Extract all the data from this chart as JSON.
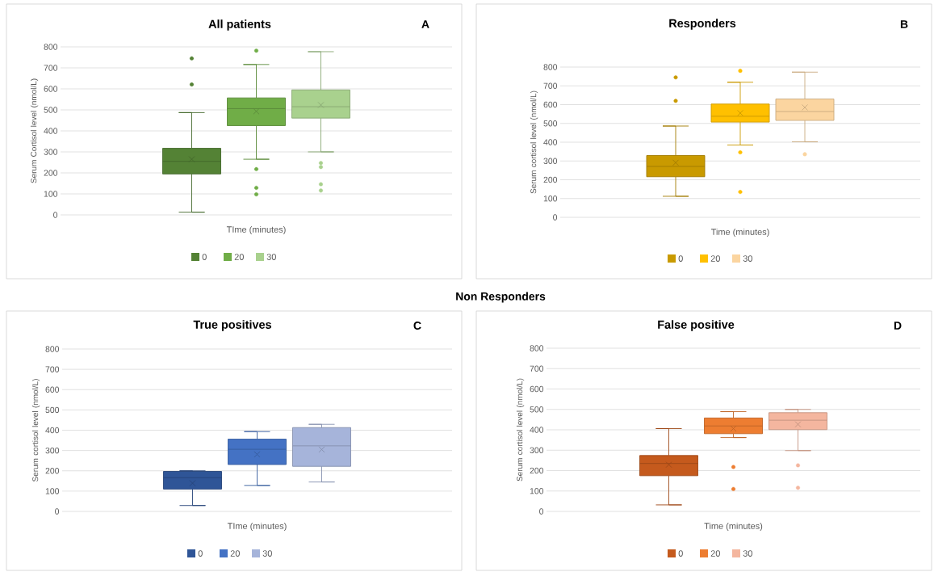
{
  "chart_data": [
    {
      "type": "box",
      "title": "All patients",
      "annotations": [
        "A"
      ],
      "xlabel": "TIme (minutes)",
      "ylabel": "Serum Cortisol level (nmol/L)",
      "categories": [
        null
      ],
      "ylim": [
        0,
        800
      ],
      "yticks": [
        0,
        100,
        200,
        300,
        400,
        500,
        600,
        700,
        800
      ],
      "grid": "y",
      "legend": "bottom",
      "series": [
        {
          "name": "0",
          "color": "#548235",
          "boxes": [
            {
              "low": 13,
              "q1": 195,
              "median": 255,
              "q3": 317,
              "high": 487,
              "mean": 265,
              "outliers": [
                745,
                621
              ]
            }
          ]
        },
        {
          "name": "20",
          "color": "#70ad47",
          "boxes": [
            {
              "low": 265,
              "q1": 425,
              "median": 506,
              "q3": 557,
              "high": 716,
              "mean": 493,
              "outliers": [
                782,
                218,
                129,
                98
              ]
            }
          ]
        },
        {
          "name": "30",
          "color": "#a9d18e",
          "boxes": [
            {
              "low": 300,
              "q1": 461,
              "median": 515,
              "q3": 595,
              "high": 777,
              "mean": 523,
              "outliers": [
                247,
                228,
                146,
                116
              ]
            }
          ]
        }
      ]
    },
    {
      "type": "box",
      "title": "Responders",
      "annotations": [
        "B"
      ],
      "xlabel": "Time (minutes)",
      "ylabel": "Serum cortisol level (nmol/L)",
      "categories": [
        null
      ],
      "ylim": [
        0,
        800
      ],
      "yticks": [
        0,
        100,
        200,
        300,
        400,
        500,
        600,
        700,
        800
      ],
      "grid": "y",
      "legend": "bottom",
      "series": [
        {
          "name": "0",
          "color": "#c99a00",
          "boxes": [
            {
              "low": 112,
              "q1": 216,
              "median": 271,
              "q3": 329,
              "high": 486,
              "mean": 291,
              "outliers": [
                745,
                620
              ]
            }
          ]
        },
        {
          "name": "20",
          "color": "#ffc000",
          "boxes": [
            {
              "low": 385,
              "q1": 507,
              "median": 538,
              "q3": 603,
              "high": 719,
              "mean": 555,
              "outliers": [
                780,
                346,
                135
              ]
            }
          ]
        },
        {
          "name": "30",
          "color": "#fbd5a0",
          "boxes": [
            {
              "low": 402,
              "q1": 516,
              "median": 563,
              "q3": 630,
              "high": 773,
              "mean": 585,
              "outliers": [
                336
              ]
            }
          ]
        }
      ]
    },
    {
      "type": "box",
      "title": "True positives",
      "annotations": [
        "C",
        "Non Responders"
      ],
      "xlabel": "TIme (minutes)",
      "ylabel": "Serum cortisol level (nmol/L)",
      "categories": [
        null
      ],
      "ylim": [
        0,
        800
      ],
      "yticks": [
        0,
        100,
        200,
        300,
        400,
        500,
        600,
        700,
        800
      ],
      "grid": "y",
      "legend": "bottom",
      "series": [
        {
          "name": "0",
          "color": "#2f5597",
          "boxes": [
            {
              "low": 29,
              "q1": 110,
              "median": 166,
              "q3": 197,
              "high": 200,
              "mean": 139
            }
          ]
        },
        {
          "name": "20",
          "color": "#4472c4",
          "boxes": [
            {
              "low": 128,
              "q1": 231,
              "median": 306,
              "q3": 356,
              "high": 393,
              "mean": 281
            }
          ]
        },
        {
          "name": "30",
          "color": "#a6b4da",
          "boxes": [
            {
              "low": 145,
              "q1": 222,
              "median": 323,
              "q3": 413,
              "high": 429,
              "mean": 305
            }
          ]
        }
      ]
    },
    {
      "type": "box",
      "title": "False positive",
      "annotations": [
        "D"
      ],
      "xlabel": "Time (minutes)",
      "ylabel": "Serum cortisol level (nmol/L)",
      "categories": [
        null
      ],
      "ylim": [
        0,
        800
      ],
      "yticks": [
        0,
        100,
        200,
        300,
        400,
        500,
        600,
        700,
        800
      ],
      "grid": "y",
      "legend": "bottom",
      "series": [
        {
          "name": "0",
          "color": "#c55a1d",
          "boxes": [
            {
              "low": 32,
              "q1": 175,
              "median": 235,
              "q3": 274,
              "high": 406,
              "mean": 229
            }
          ]
        },
        {
          "name": "20",
          "color": "#ed7d31",
          "boxes": [
            {
              "low": 362,
              "q1": 381,
              "median": 419,
              "q3": 458,
              "high": 489,
              "mean": 406,
              "outliers": [
                218,
                110
              ]
            }
          ]
        },
        {
          "name": "30",
          "color": "#f4b69f",
          "boxes": [
            {
              "low": 298,
              "q1": 401,
              "median": 447,
              "q3": 484,
              "high": 500,
              "mean": 427,
              "outliers": [
                226,
                116
              ]
            }
          ]
        }
      ]
    }
  ]
}
